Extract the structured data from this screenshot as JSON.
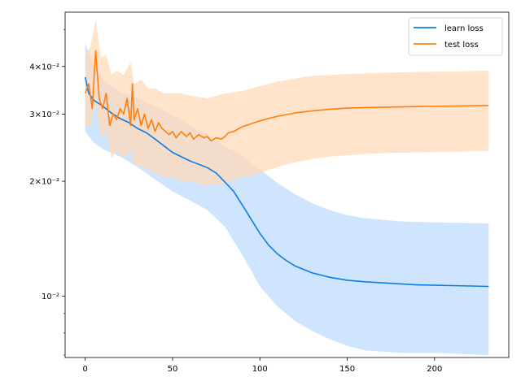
{
  "chart_data": {
    "type": "line",
    "title": "",
    "xlabel": "",
    "ylabel": "",
    "y_scale": "log",
    "xlim": [
      -11.5,
      242.5
    ],
    "ylim": [
      0.0069,
      0.0555
    ],
    "x_ticks": [
      0,
      50,
      100,
      150,
      200
    ],
    "y_ticks": [
      {
        "value": 0.01,
        "label": "10⁻²"
      },
      {
        "value": 0.02,
        "label": "2×10⁻²"
      },
      {
        "value": 0.03,
        "label": "3×10⁻²"
      },
      {
        "value": 0.04,
        "label": "4×10⁻²"
      }
    ],
    "y_minor_ticks": [
      0.007,
      0.008,
      0.009,
      0.05
    ],
    "grid": false,
    "legend_position": "top-right",
    "series": [
      {
        "name": "learn loss",
        "color": "#0a7de8",
        "band_color": "#cce4fd",
        "mean": [
          [
            0,
            0.0375
          ],
          [
            2,
            0.034
          ],
          [
            5,
            0.0326
          ],
          [
            10,
            0.0315
          ],
          [
            15,
            0.0302
          ],
          [
            20,
            0.0292
          ],
          [
            25,
            0.0285
          ],
          [
            30,
            0.0275
          ],
          [
            35,
            0.0268
          ],
          [
            40,
            0.0258
          ],
          [
            50,
            0.0238
          ],
          [
            60,
            0.0226
          ],
          [
            70,
            0.0217
          ],
          [
            75,
            0.021
          ],
          [
            80,
            0.0199
          ],
          [
            85,
            0.0188
          ],
          [
            90,
            0.0173
          ],
          [
            95,
            0.0159
          ],
          [
            100,
            0.0146
          ],
          [
            105,
            0.0136
          ],
          [
            110,
            0.0129
          ],
          [
            115,
            0.0124
          ],
          [
            120,
            0.012
          ],
          [
            130,
            0.0115
          ],
          [
            140,
            0.0112
          ],
          [
            150,
            0.011
          ],
          [
            160,
            0.0109
          ],
          [
            175,
            0.0108
          ],
          [
            190,
            0.0107
          ],
          [
            210,
            0.01065
          ],
          [
            231,
            0.0106
          ]
        ],
        "upper": [
          [
            0,
            0.046
          ],
          [
            5,
            0.04
          ],
          [
            10,
            0.037
          ],
          [
            15,
            0.0355
          ],
          [
            20,
            0.0342
          ],
          [
            30,
            0.033
          ],
          [
            40,
            0.0315
          ],
          [
            50,
            0.0298
          ],
          [
            60,
            0.028
          ],
          [
            70,
            0.0265
          ],
          [
            80,
            0.0248
          ],
          [
            90,
            0.0232
          ],
          [
            100,
            0.0215
          ],
          [
            110,
            0.0198
          ],
          [
            120,
            0.0185
          ],
          [
            130,
            0.0175
          ],
          [
            140,
            0.0168
          ],
          [
            150,
            0.0163
          ],
          [
            160,
            0.016
          ],
          [
            180,
            0.0157
          ],
          [
            200,
            0.0156
          ],
          [
            231,
            0.0155
          ]
        ],
        "lower": [
          [
            0,
            0.027
          ],
          [
            5,
            0.0252
          ],
          [
            10,
            0.0243
          ],
          [
            20,
            0.0232
          ],
          [
            30,
            0.0218
          ],
          [
            40,
            0.0202
          ],
          [
            50,
            0.0188
          ],
          [
            60,
            0.0178
          ],
          [
            70,
            0.0168
          ],
          [
            80,
            0.0152
          ],
          [
            90,
            0.0128
          ],
          [
            100,
            0.0106
          ],
          [
            110,
            0.0094
          ],
          [
            120,
            0.0086
          ],
          [
            130,
            0.0081
          ],
          [
            140,
            0.0077
          ],
          [
            150,
            0.0074
          ],
          [
            160,
            0.0072
          ],
          [
            180,
            0.0071
          ],
          [
            200,
            0.0071
          ],
          [
            231,
            0.007
          ]
        ]
      },
      {
        "name": "test loss",
        "color": "#ff7f0e",
        "band_color": "#ffdab8",
        "mean": [
          [
            0,
            0.034
          ],
          [
            2,
            0.036
          ],
          [
            4,
            0.031
          ],
          [
            6,
            0.044
          ],
          [
            8,
            0.033
          ],
          [
            10,
            0.031
          ],
          [
            12,
            0.034
          ],
          [
            14,
            0.028
          ],
          [
            16,
            0.03
          ],
          [
            18,
            0.029
          ],
          [
            20,
            0.031
          ],
          [
            22,
            0.03
          ],
          [
            24,
            0.033
          ],
          [
            26,
            0.028
          ],
          [
            27,
            0.036
          ],
          [
            28,
            0.029
          ],
          [
            30,
            0.031
          ],
          [
            32,
            0.028
          ],
          [
            34,
            0.03
          ],
          [
            36,
            0.0275
          ],
          [
            38,
            0.029
          ],
          [
            40,
            0.027
          ],
          [
            42,
            0.0285
          ],
          [
            44,
            0.0275
          ],
          [
            46,
            0.027
          ],
          [
            48,
            0.0265
          ],
          [
            50,
            0.027
          ],
          [
            52,
            0.026
          ],
          [
            55,
            0.027
          ],
          [
            58,
            0.0262
          ],
          [
            60,
            0.0268
          ],
          [
            62,
            0.0258
          ],
          [
            65,
            0.0265
          ],
          [
            68,
            0.026
          ],
          [
            70,
            0.0262
          ],
          [
            72,
            0.0255
          ],
          [
            75,
            0.026
          ],
          [
            78,
            0.0258
          ],
          [
            80,
            0.0262
          ],
          [
            82,
            0.0268
          ],
          [
            85,
            0.027
          ],
          [
            88,
            0.0275
          ],
          [
            90,
            0.0278
          ],
          [
            92,
            0.028
          ],
          [
            95,
            0.0283
          ],
          [
            98,
            0.0286
          ],
          [
            100,
            0.0288
          ],
          [
            105,
            0.0292
          ],
          [
            110,
            0.0296
          ],
          [
            115,
            0.0299
          ],
          [
            120,
            0.0302
          ],
          [
            130,
            0.0306
          ],
          [
            140,
            0.0309
          ],
          [
            150,
            0.0311
          ],
          [
            160,
            0.0312
          ],
          [
            175,
            0.0313
          ],
          [
            190,
            0.0314
          ],
          [
            210,
            0.0315
          ],
          [
            231,
            0.0316
          ]
        ],
        "upper": [
          [
            0,
            0.043
          ],
          [
            3,
            0.045
          ],
          [
            6,
            0.053
          ],
          [
            9,
            0.042
          ],
          [
            12,
            0.043
          ],
          [
            15,
            0.038
          ],
          [
            18,
            0.039
          ],
          [
            22,
            0.038
          ],
          [
            26,
            0.041
          ],
          [
            28,
            0.036
          ],
          [
            32,
            0.037
          ],
          [
            36,
            0.035
          ],
          [
            40,
            0.035
          ],
          [
            45,
            0.034
          ],
          [
            50,
            0.034
          ],
          [
            55,
            0.034
          ],
          [
            60,
            0.0335
          ],
          [
            70,
            0.033
          ],
          [
            80,
            0.034
          ],
          [
            90,
            0.0345
          ],
          [
            100,
            0.0355
          ],
          [
            110,
            0.0365
          ],
          [
            120,
            0.0372
          ],
          [
            130,
            0.0378
          ],
          [
            140,
            0.038
          ],
          [
            150,
            0.0382
          ],
          [
            170,
            0.0385
          ],
          [
            190,
            0.0387
          ],
          [
            210,
            0.0388
          ],
          [
            231,
            0.039
          ]
        ],
        "lower": [
          [
            0,
            0.028
          ],
          [
            3,
            0.028
          ],
          [
            6,
            0.032
          ],
          [
            9,
            0.026
          ],
          [
            12,
            0.027
          ],
          [
            15,
            0.023
          ],
          [
            18,
            0.024
          ],
          [
            22,
            0.023
          ],
          [
            26,
            0.024
          ],
          [
            28,
            0.022
          ],
          [
            32,
            0.022
          ],
          [
            36,
            0.0215
          ],
          [
            40,
            0.021
          ],
          [
            45,
            0.0205
          ],
          [
            50,
            0.0205
          ],
          [
            55,
            0.02
          ],
          [
            60,
            0.02
          ],
          [
            70,
            0.0195
          ],
          [
            80,
            0.0198
          ],
          [
            90,
            0.0205
          ],
          [
            100,
            0.021
          ],
          [
            110,
            0.0218
          ],
          [
            120,
            0.0224
          ],
          [
            130,
            0.0229
          ],
          [
            140,
            0.0232
          ],
          [
            150,
            0.0234
          ],
          [
            170,
            0.0237
          ],
          [
            190,
            0.0238
          ],
          [
            210,
            0.0239
          ],
          [
            231,
            0.024
          ]
        ]
      }
    ]
  }
}
